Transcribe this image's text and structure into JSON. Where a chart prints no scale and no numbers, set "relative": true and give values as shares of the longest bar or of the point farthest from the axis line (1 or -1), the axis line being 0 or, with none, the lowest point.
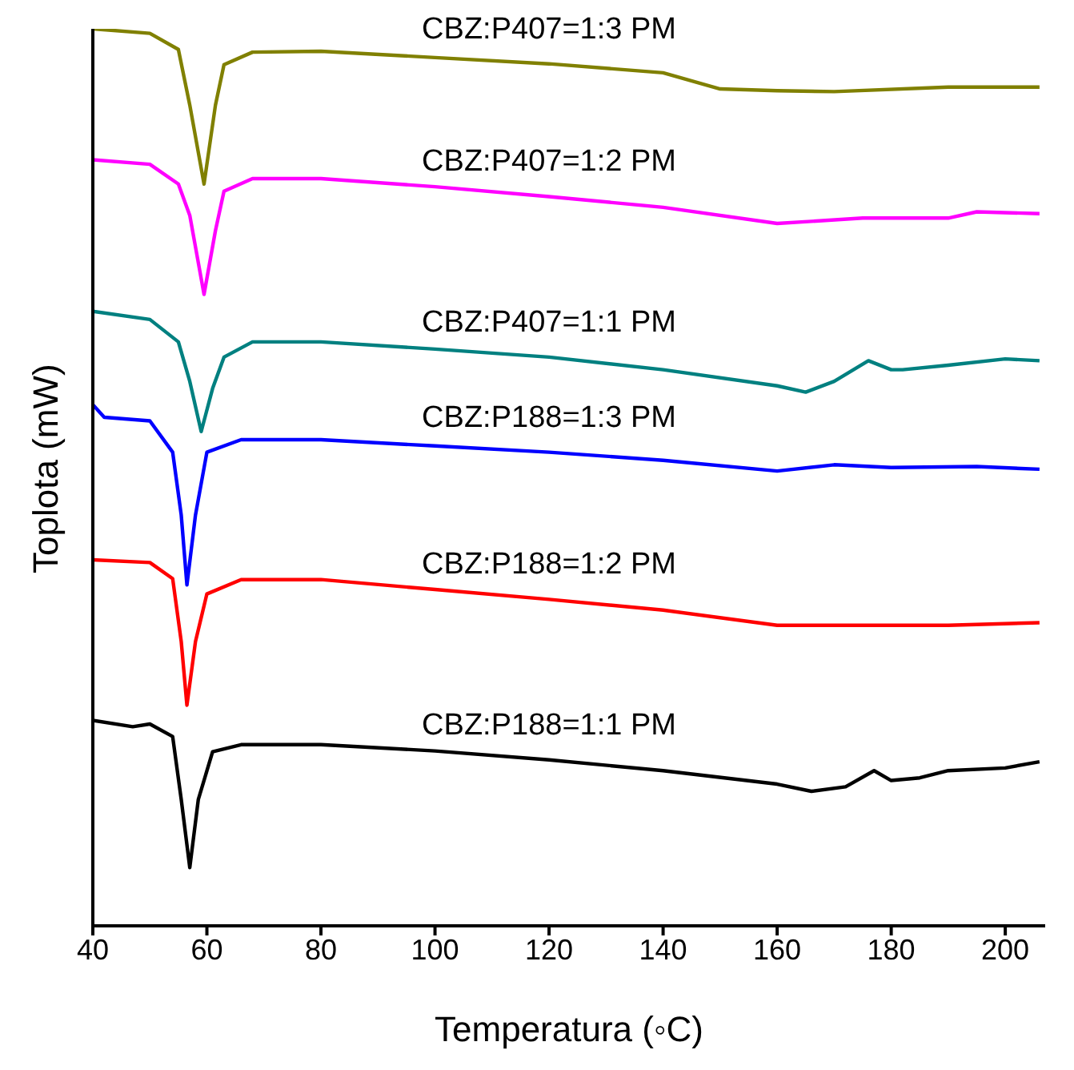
{
  "chart_data": {
    "type": "line",
    "relative": true,
    "xlabel": "Temperatura (◦C)",
    "ylabel": "Toplota (mW)",
    "xlim": [
      40,
      207
    ],
    "xticks": [
      40,
      60,
      80,
      100,
      120,
      140,
      160,
      180,
      200
    ],
    "grid": false,
    "legend": false,
    "marker": "none",
    "line_style": "solid",
    "series": [
      {
        "name": "CBZ:P407=1:3 PM",
        "color": "#808000",
        "x": [
          40,
          50,
          55,
          57,
          59.5,
          61.5,
          63,
          68,
          80,
          100,
          120,
          140,
          150,
          160,
          170,
          190,
          206
        ],
        "values": [
          1.0,
          0.995,
          0.977,
          0.915,
          0.827,
          0.915,
          0.96,
          0.974,
          0.975,
          0.968,
          0.961,
          0.951,
          0.933,
          0.931,
          0.93,
          0.935,
          0.935
        ]
      },
      {
        "name": "CBZ:P407=1:2 PM",
        "color": "#ff00ff",
        "x": [
          40,
          50,
          55,
          57,
          59.5,
          61.5,
          63,
          68,
          80,
          100,
          120,
          140,
          160,
          175,
          190,
          195,
          206
        ],
        "values": [
          0.854,
          0.849,
          0.827,
          0.792,
          0.704,
          0.775,
          0.819,
          0.833,
          0.833,
          0.824,
          0.813,
          0.801,
          0.783,
          0.789,
          0.789,
          0.796,
          0.794
        ]
      },
      {
        "name": "CBZ:P407=1:1 PM",
        "color": "#008080",
        "x": [
          40,
          50,
          55,
          57,
          59,
          61,
          63,
          68,
          80,
          100,
          120,
          140,
          160,
          165,
          170,
          176,
          180,
          182,
          190,
          200,
          206
        ],
        "values": [
          0.685,
          0.676,
          0.651,
          0.607,
          0.551,
          0.599,
          0.634,
          0.651,
          0.651,
          0.643,
          0.634,
          0.62,
          0.602,
          0.595,
          0.607,
          0.63,
          0.62,
          0.62,
          0.625,
          0.632,
          0.63
        ]
      },
      {
        "name": "CBZ:P188=1:3 PM",
        "color": "#0000ff",
        "x": [
          40,
          42,
          50,
          54,
          55.5,
          56.5,
          58,
          60,
          66,
          80,
          100,
          120,
          140,
          160,
          170,
          180,
          195,
          206
        ],
        "values": [
          0.581,
          0.567,
          0.563,
          0.528,
          0.458,
          0.38,
          0.458,
          0.528,
          0.542,
          0.542,
          0.535,
          0.528,
          0.519,
          0.507,
          0.514,
          0.511,
          0.512,
          0.509
        ]
      },
      {
        "name": "CBZ:P188=1:2 PM",
        "color": "#ff0000",
        "x": [
          40,
          50,
          54,
          55.5,
          56.5,
          58,
          60,
          66,
          80,
          100,
          120,
          140,
          160,
          175,
          190,
          206
        ],
        "values": [
          0.408,
          0.405,
          0.387,
          0.317,
          0.246,
          0.317,
          0.37,
          0.386,
          0.386,
          0.375,
          0.364,
          0.352,
          0.335,
          0.335,
          0.335,
          0.338
        ]
      },
      {
        "name": "CBZ:P188=1:1 PM",
        "color": "#000000",
        "x": [
          40,
          47,
          50,
          54,
          55.5,
          57,
          58.5,
          61,
          66,
          80,
          100,
          120,
          140,
          160,
          166,
          172,
          177,
          180,
          185,
          190,
          200,
          206
        ],
        "values": [
          0.229,
          0.222,
          0.225,
          0.211,
          0.141,
          0.065,
          0.141,
          0.194,
          0.202,
          0.202,
          0.195,
          0.185,
          0.173,
          0.158,
          0.15,
          0.155,
          0.173,
          0.162,
          0.165,
          0.173,
          0.176,
          0.183
        ]
      }
    ]
  }
}
